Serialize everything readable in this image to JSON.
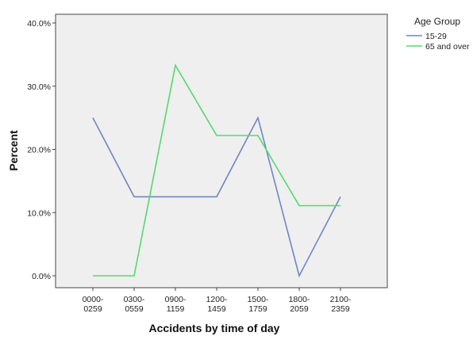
{
  "chart_data": {
    "type": "line",
    "xlabel": "Accidents by time of day",
    "ylabel": "Percent",
    "ylim": [
      0,
      40
    ],
    "y_ticks": [
      "0.0%",
      "10.0%",
      "20.0%",
      "30.0%",
      "40.0%"
    ],
    "categories": [
      [
        "0000-",
        "0259"
      ],
      [
        "0300-",
        "0559"
      ],
      [
        "0900-",
        "1159"
      ],
      [
        "1200-",
        "1459"
      ],
      [
        "1500-",
        "1759"
      ],
      [
        "1800-",
        "2059"
      ],
      [
        "2100-",
        "2359"
      ]
    ],
    "legend_title": "Age Group",
    "legend_position": "top-right, outside plot",
    "grid": false,
    "plot_background": "#efefef",
    "series": [
      {
        "name": "15-29",
        "color": "#6f86c6",
        "values": [
          25.0,
          12.5,
          12.5,
          12.5,
          25.0,
          0.0,
          12.5
        ]
      },
      {
        "name": "65 and over",
        "color": "#55d86f",
        "values": [
          0.0,
          0.0,
          33.3,
          22.2,
          22.2,
          11.1,
          11.1
        ]
      }
    ]
  }
}
